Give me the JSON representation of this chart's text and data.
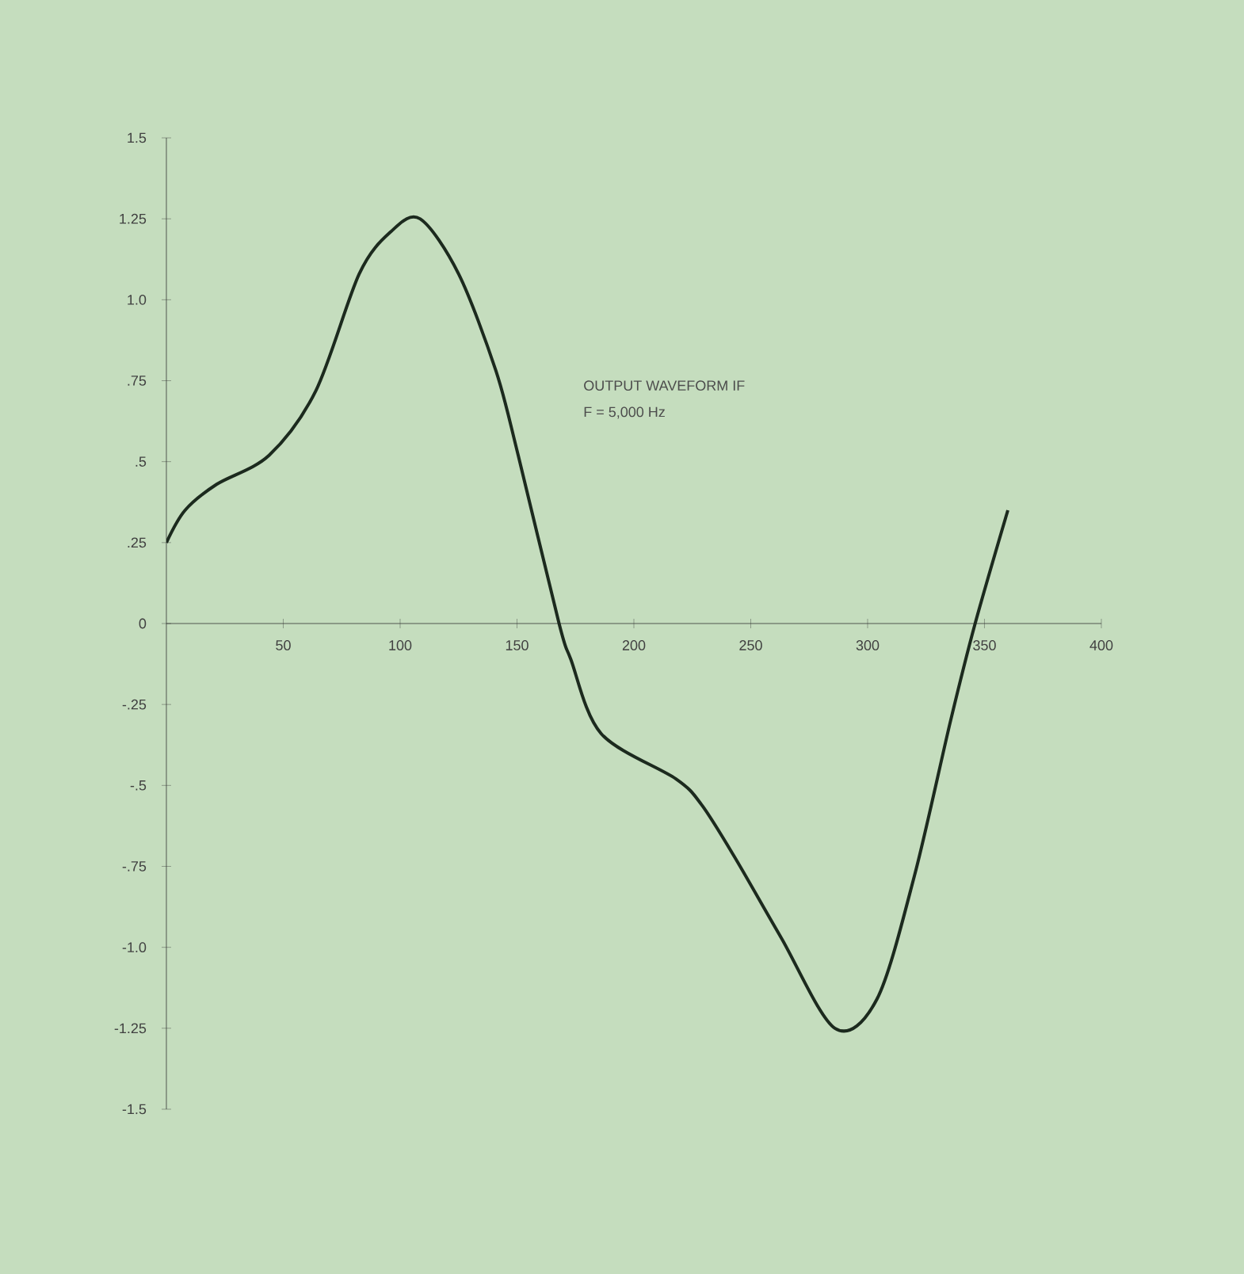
{
  "chart_data": {
    "type": "line",
    "annotations": [
      "OUTPUT WAVEFORM IF",
      "F = 5,000 Hz"
    ],
    "x": [
      0,
      8,
      21.5,
      44,
      64,
      82.5,
      96,
      108.5,
      125,
      141,
      150.5,
      168,
      173,
      186,
      218,
      229,
      243,
      263,
      286,
      304,
      320,
      335.5,
      346,
      360
    ],
    "series": [
      {
        "color": "#1c2a1e",
        "values": [
          0.25,
          0.35,
          0.43,
          0.52,
          0.72,
          1.08,
          1.21,
          1.25,
          1.08,
          0.78,
          0.52,
          0,
          -0.11,
          -0.34,
          -0.48,
          -0.56,
          -0.72,
          -0.97,
          -1.25,
          -1.16,
          -0.78,
          -0.3,
          0,
          0.35
        ]
      }
    ],
    "xlim": [
      0,
      400
    ],
    "ylim": [
      -1.5,
      1.5
    ],
    "xticks": [
      50,
      100,
      150,
      200,
      250,
      300,
      350,
      400
    ],
    "yticks": [
      {
        "value": 1.5,
        "label": "1.5"
      },
      {
        "value": 1.25,
        "label": "1.25"
      },
      {
        "value": 1.0,
        "label": "1.0"
      },
      {
        "value": 0.75,
        "label": ".75"
      },
      {
        "value": 0.5,
        "label": ".5"
      },
      {
        "value": 0.25,
        "label": ".25"
      },
      {
        "value": 0,
        "label": "0"
      },
      {
        "value": -0.25,
        "label": "-.25"
      },
      {
        "value": -0.5,
        "label": "-.5"
      },
      {
        "value": -0.75,
        "label": "-.75"
      },
      {
        "value": -1.0,
        "label": "-1.0"
      },
      {
        "value": -1.25,
        "label": "-1.25"
      },
      {
        "value": -1.5,
        "label": "-1.5"
      }
    ],
    "grid": false,
    "marker": "none",
    "line_style": "solid"
  }
}
